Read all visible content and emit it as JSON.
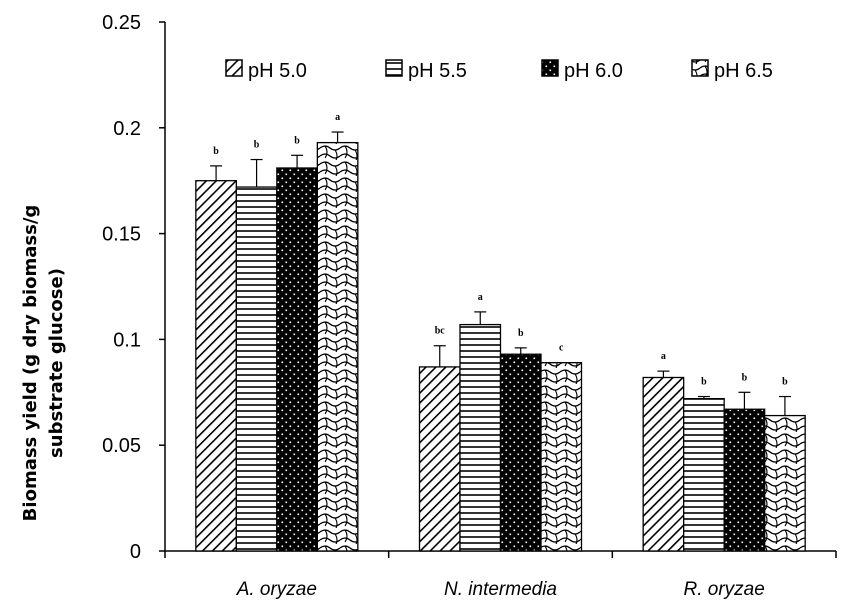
{
  "chart_data": {
    "type": "bar",
    "categories": [
      "A. oryzae",
      "N. intermedia",
      "R. oryzae"
    ],
    "series": [
      {
        "name": "pH 5.0",
        "pattern": "diagonal",
        "values": [
          0.175,
          0.087,
          0.082
        ],
        "errors": [
          0.007,
          0.01,
          0.003
        ],
        "letters": [
          "b",
          "bc",
          "a"
        ]
      },
      {
        "name": "pH 5.5",
        "pattern": "horizontal",
        "values": [
          0.172,
          0.107,
          0.072
        ],
        "errors": [
          0.013,
          0.006,
          0.001
        ],
        "letters": [
          "b",
          "a",
          "b"
        ]
      },
      {
        "name": "pH 6.0",
        "pattern": "dots",
        "values": [
          0.181,
          0.093,
          0.067
        ],
        "errors": [
          0.006,
          0.003,
          0.008
        ],
        "letters": [
          "b",
          "b",
          "b"
        ]
      },
      {
        "name": "pH 6.5",
        "pattern": "waves",
        "values": [
          0.193,
          0.089,
          0.064
        ],
        "errors": [
          0.005,
          0.0,
          0.009
        ],
        "letters": [
          "a",
          "c",
          "b"
        ]
      }
    ],
    "ylabel_lines": [
      "Biomass yield (g dry biomass/g",
      "substrate glucose)"
    ],
    "yticks": [
      "0",
      "0.05",
      "0.1",
      "0.15",
      "0.2",
      "0.25"
    ],
    "ylim": [
      0,
      0.25
    ],
    "grid": false,
    "legend_position": "top-center"
  }
}
